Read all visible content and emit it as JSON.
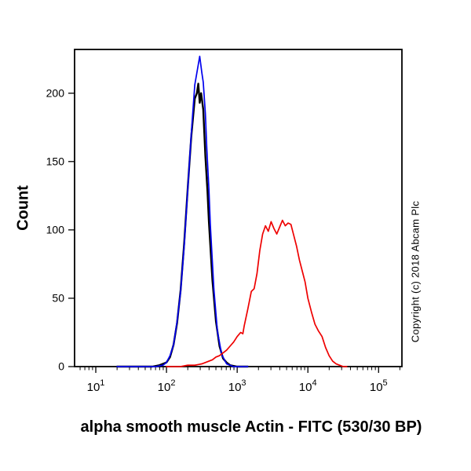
{
  "annotations": {
    "copyright": "Copyright (c) 2018 Abcam Plc"
  },
  "chart_data": {
    "type": "line",
    "subtype": "flow-cytometry-histogram",
    "title": "",
    "xlabel": "alpha smooth muscle Actin - FITC (530/30 BP)",
    "ylabel": "Count",
    "x_scale": "log10",
    "xlim_log": [
      0.7,
      5.33
    ],
    "x_ticks_exponents": [
      1,
      2,
      3,
      4,
      5
    ],
    "ylim": [
      0,
      232
    ],
    "y_ticks": [
      0,
      50,
      100,
      150,
      200
    ],
    "grid": false,
    "legend": "none",
    "frame_color": "#000000",
    "series": [
      {
        "name": "unlabelled-control-black",
        "color": "#000000",
        "stroke_width": 2.4,
        "points": [
          [
            1.3,
            0
          ],
          [
            1.8,
            0
          ],
          [
            1.9,
            1
          ],
          [
            2.0,
            3
          ],
          [
            2.05,
            7
          ],
          [
            2.1,
            16
          ],
          [
            2.15,
            32
          ],
          [
            2.2,
            56
          ],
          [
            2.25,
            90
          ],
          [
            2.3,
            130
          ],
          [
            2.35,
            168
          ],
          [
            2.4,
            196
          ],
          [
            2.43,
            200
          ],
          [
            2.45,
            207
          ],
          [
            2.47,
            193
          ],
          [
            2.49,
            200
          ],
          [
            2.52,
            188
          ],
          [
            2.55,
            154
          ],
          [
            2.58,
            128
          ],
          [
            2.6,
            106
          ],
          [
            2.65,
            63
          ],
          [
            2.7,
            33
          ],
          [
            2.75,
            15
          ],
          [
            2.8,
            6
          ],
          [
            2.85,
            3
          ],
          [
            2.9,
            1
          ],
          [
            3.0,
            0
          ],
          [
            3.15,
            0
          ]
        ]
      },
      {
        "name": "isotype-control-blue",
        "color": "#0000ee",
        "stroke_width": 1.7,
        "points": [
          [
            1.3,
            0
          ],
          [
            1.85,
            0
          ],
          [
            1.95,
            1
          ],
          [
            2.0,
            3
          ],
          [
            2.05,
            8
          ],
          [
            2.1,
            16
          ],
          [
            2.15,
            33
          ],
          [
            2.2,
            55
          ],
          [
            2.25,
            88
          ],
          [
            2.3,
            129
          ],
          [
            2.35,
            170
          ],
          [
            2.4,
            206
          ],
          [
            2.44,
            218
          ],
          [
            2.47,
            227
          ],
          [
            2.5,
            215
          ],
          [
            2.52,
            208
          ],
          [
            2.55,
            185
          ],
          [
            2.57,
            160
          ],
          [
            2.6,
            130
          ],
          [
            2.62,
            104
          ],
          [
            2.67,
            57
          ],
          [
            2.72,
            26
          ],
          [
            2.78,
            9
          ],
          [
            2.85,
            2
          ],
          [
            2.95,
            0
          ],
          [
            3.15,
            0
          ]
        ]
      },
      {
        "name": "alpha-smooth-muscle-actin-red",
        "color": "#ee0000",
        "stroke_width": 1.7,
        "points": [
          [
            2.0,
            0
          ],
          [
            2.2,
            0
          ],
          [
            2.3,
            1
          ],
          [
            2.4,
            1
          ],
          [
            2.5,
            2
          ],
          [
            2.55,
            3
          ],
          [
            2.6,
            4
          ],
          [
            2.65,
            5
          ],
          [
            2.7,
            7
          ],
          [
            2.75,
            8
          ],
          [
            2.8,
            10
          ],
          [
            2.85,
            12
          ],
          [
            2.9,
            15
          ],
          [
            2.95,
            18
          ],
          [
            3.0,
            22
          ],
          [
            3.05,
            25
          ],
          [
            3.08,
            24
          ],
          [
            3.1,
            30
          ],
          [
            3.15,
            42
          ],
          [
            3.2,
            55
          ],
          [
            3.24,
            57
          ],
          [
            3.28,
            68
          ],
          [
            3.32,
            85
          ],
          [
            3.36,
            97
          ],
          [
            3.4,
            103
          ],
          [
            3.44,
            99
          ],
          [
            3.48,
            106
          ],
          [
            3.52,
            101
          ],
          [
            3.56,
            97
          ],
          [
            3.6,
            102
          ],
          [
            3.64,
            107
          ],
          [
            3.68,
            103
          ],
          [
            3.72,
            105
          ],
          [
            3.76,
            104
          ],
          [
            3.8,
            96
          ],
          [
            3.84,
            88
          ],
          [
            3.88,
            78
          ],
          [
            3.92,
            70
          ],
          [
            3.96,
            62
          ],
          [
            4.0,
            50
          ],
          [
            4.05,
            40
          ],
          [
            4.1,
            31
          ],
          [
            4.15,
            26
          ],
          [
            4.2,
            22
          ],
          [
            4.25,
            14
          ],
          [
            4.3,
            8
          ],
          [
            4.35,
            4
          ],
          [
            4.4,
            2
          ],
          [
            4.5,
            0
          ],
          [
            4.55,
            0
          ]
        ]
      }
    ]
  }
}
